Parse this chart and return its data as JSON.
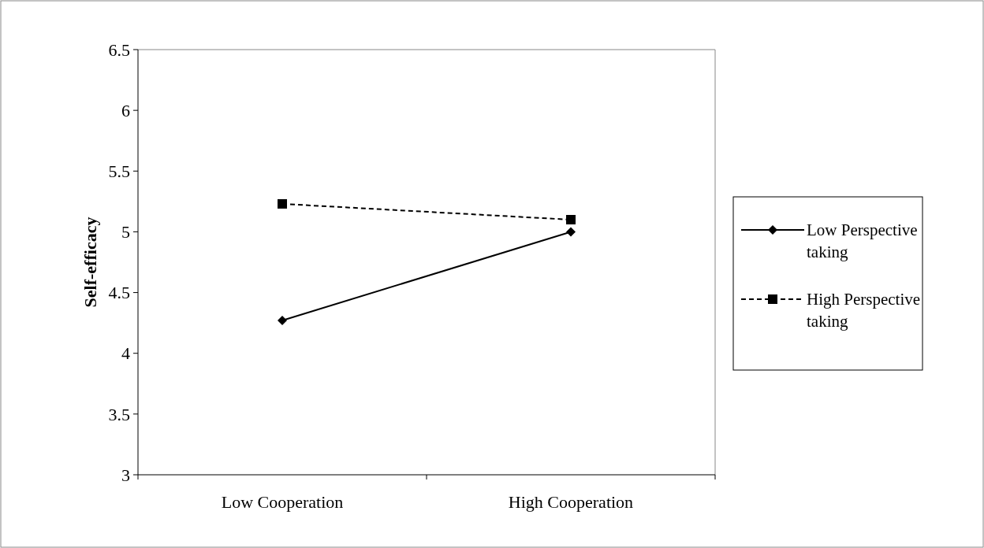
{
  "chart_data": {
    "type": "line",
    "ylabel": "Self-efficacy",
    "categories": [
      "Low Cooperation",
      "High Cooperation"
    ],
    "ylim": [
      3,
      6.5
    ],
    "yticks": [
      3,
      3.5,
      4,
      4.5,
      5,
      5.5,
      6,
      6.5
    ],
    "grid": false,
    "legend": "right",
    "series": [
      {
        "name": "Low Perspective taking",
        "color": "#000000",
        "values": [
          4.27,
          5.0
        ],
        "marker": "diamond",
        "line_style": "solid"
      },
      {
        "name": "High Perspective taking",
        "color": "#000000",
        "values": [
          5.23,
          5.1
        ],
        "marker": "square",
        "line_style": "dashed"
      }
    ]
  }
}
